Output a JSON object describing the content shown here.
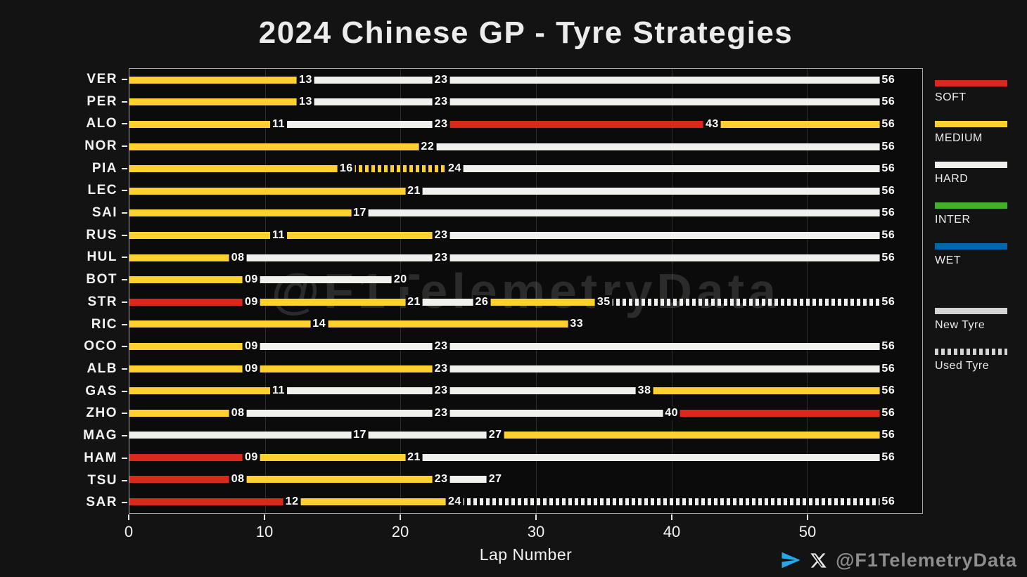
{
  "title": "2024 Chinese GP - Tyre Strategies",
  "xlabel": "Lap Number",
  "watermark": "@F1TelemetryData",
  "footer": {
    "handle": "@F1TelemetryData"
  },
  "colors": {
    "figure_bg": "#131313",
    "plot_bg": "#0b0b0b",
    "grid": "#2f2f2f",
    "telegram_blue": "#27A7E7"
  },
  "legend": {
    "compounds": [
      {
        "label": "SOFT",
        "color": "#da291c"
      },
      {
        "label": "MEDIUM",
        "color": "#ffd12e"
      },
      {
        "label": "HARD",
        "color": "#f0f0ec"
      },
      {
        "label": "INTER",
        "color": "#43b02a"
      },
      {
        "label": "WET",
        "color": "#0067ad"
      }
    ],
    "tyre_state": [
      {
        "label": "New Tyre",
        "style": "solid",
        "color": "#d4d4d4"
      },
      {
        "label": "Used Tyre",
        "style": "dashed",
        "color": "#d4d4d4"
      }
    ]
  },
  "chart_data": {
    "type": "bar",
    "orientation": "horizontal-gantt",
    "title": "2024 Chinese GP - Tyre Strategies",
    "xlabel": "Lap Number",
    "x_ticks": [
      0,
      10,
      20,
      30,
      40,
      50
    ],
    "x_max": 58.5,
    "race_laps": 56,
    "grid": "vertical",
    "legend_position": "right",
    "drivers": [
      {
        "code": "VER",
        "stints": [
          {
            "compound": "MEDIUM",
            "start": 0,
            "end": 13,
            "label": "13",
            "used": false
          },
          {
            "compound": "HARD",
            "start": 13,
            "end": 23,
            "label": "23",
            "used": false
          },
          {
            "compound": "HARD",
            "start": 23,
            "end": 56,
            "label": "56",
            "used": false
          }
        ]
      },
      {
        "code": "PER",
        "stints": [
          {
            "compound": "MEDIUM",
            "start": 0,
            "end": 13,
            "label": "13",
            "used": false
          },
          {
            "compound": "HARD",
            "start": 13,
            "end": 23,
            "label": "23",
            "used": false
          },
          {
            "compound": "HARD",
            "start": 23,
            "end": 56,
            "label": "56",
            "used": false
          }
        ]
      },
      {
        "code": "ALO",
        "stints": [
          {
            "compound": "MEDIUM",
            "start": 0,
            "end": 11,
            "label": "11",
            "used": false
          },
          {
            "compound": "HARD",
            "start": 11,
            "end": 23,
            "label": "23",
            "used": false
          },
          {
            "compound": "SOFT",
            "start": 23,
            "end": 43,
            "label": "43",
            "used": false
          },
          {
            "compound": "MEDIUM",
            "start": 43,
            "end": 56,
            "label": "56",
            "used": false
          }
        ]
      },
      {
        "code": "NOR",
        "stints": [
          {
            "compound": "MEDIUM",
            "start": 0,
            "end": 22,
            "label": "22",
            "used": false
          },
          {
            "compound": "HARD",
            "start": 22,
            "end": 56,
            "label": "56",
            "used": false
          }
        ]
      },
      {
        "code": "PIA",
        "stints": [
          {
            "compound": "MEDIUM",
            "start": 0,
            "end": 16,
            "label": "16",
            "used": false
          },
          {
            "compound": "MEDIUM",
            "start": 16,
            "end": 24,
            "label": "24",
            "used": true
          },
          {
            "compound": "HARD",
            "start": 24,
            "end": 56,
            "label": "56",
            "used": false
          }
        ]
      },
      {
        "code": "LEC",
        "stints": [
          {
            "compound": "MEDIUM",
            "start": 0,
            "end": 21,
            "label": "21",
            "used": false
          },
          {
            "compound": "HARD",
            "start": 21,
            "end": 56,
            "label": "56",
            "used": false
          }
        ]
      },
      {
        "code": "SAI",
        "stints": [
          {
            "compound": "MEDIUM",
            "start": 0,
            "end": 17,
            "label": "17",
            "used": false
          },
          {
            "compound": "HARD",
            "start": 17,
            "end": 56,
            "label": "56",
            "used": false
          }
        ]
      },
      {
        "code": "RUS",
        "stints": [
          {
            "compound": "MEDIUM",
            "start": 0,
            "end": 11,
            "label": "11",
            "used": false
          },
          {
            "compound": "MEDIUM",
            "start": 11,
            "end": 23,
            "label": "23",
            "used": false
          },
          {
            "compound": "HARD",
            "start": 23,
            "end": 56,
            "label": "56",
            "used": false
          }
        ]
      },
      {
        "code": "HUL",
        "stints": [
          {
            "compound": "MEDIUM",
            "start": 0,
            "end": 8,
            "label": "08",
            "used": false
          },
          {
            "compound": "HARD",
            "start": 8,
            "end": 23,
            "label": "23",
            "used": false
          },
          {
            "compound": "HARD",
            "start": 23,
            "end": 56,
            "label": "56",
            "used": false
          }
        ]
      },
      {
        "code": "BOT",
        "stints": [
          {
            "compound": "MEDIUM",
            "start": 0,
            "end": 9,
            "label": "09",
            "used": false
          },
          {
            "compound": "HARD",
            "start": 9,
            "end": 20,
            "label": "20",
            "used": false
          }
        ]
      },
      {
        "code": "STR",
        "stints": [
          {
            "compound": "SOFT",
            "start": 0,
            "end": 9,
            "label": "09",
            "used": false
          },
          {
            "compound": "MEDIUM",
            "start": 9,
            "end": 21,
            "label": "21",
            "used": false
          },
          {
            "compound": "HARD",
            "start": 21,
            "end": 26,
            "label": "26",
            "used": false
          },
          {
            "compound": "MEDIUM",
            "start": 26,
            "end": 35,
            "label": "35",
            "used": false
          },
          {
            "compound": "HARD",
            "start": 35,
            "end": 56,
            "label": "56",
            "used": true
          }
        ]
      },
      {
        "code": "RIC",
        "stints": [
          {
            "compound": "MEDIUM",
            "start": 0,
            "end": 14,
            "label": "14",
            "used": false
          },
          {
            "compound": "MEDIUM",
            "start": 14,
            "end": 33,
            "label": "33",
            "used": false
          }
        ]
      },
      {
        "code": "OCO",
        "stints": [
          {
            "compound": "MEDIUM",
            "start": 0,
            "end": 9,
            "label": "09",
            "used": false
          },
          {
            "compound": "HARD",
            "start": 9,
            "end": 23,
            "label": "23",
            "used": false
          },
          {
            "compound": "HARD",
            "start": 23,
            "end": 56,
            "label": "56",
            "used": false
          }
        ]
      },
      {
        "code": "ALB",
        "stints": [
          {
            "compound": "MEDIUM",
            "start": 0,
            "end": 9,
            "label": "09",
            "used": false
          },
          {
            "compound": "MEDIUM",
            "start": 9,
            "end": 23,
            "label": "23",
            "used": false
          },
          {
            "compound": "HARD",
            "start": 23,
            "end": 56,
            "label": "56",
            "used": false
          }
        ]
      },
      {
        "code": "GAS",
        "stints": [
          {
            "compound": "MEDIUM",
            "start": 0,
            "end": 11,
            "label": "11",
            "used": false
          },
          {
            "compound": "HARD",
            "start": 11,
            "end": 23,
            "label": "23",
            "used": false
          },
          {
            "compound": "HARD",
            "start": 23,
            "end": 38,
            "label": "38",
            "used": false
          },
          {
            "compound": "MEDIUM",
            "start": 38,
            "end": 56,
            "label": "56",
            "used": false
          }
        ]
      },
      {
        "code": "ZHO",
        "stints": [
          {
            "compound": "MEDIUM",
            "start": 0,
            "end": 8,
            "label": "08",
            "used": false
          },
          {
            "compound": "HARD",
            "start": 8,
            "end": 23,
            "label": "23",
            "used": false
          },
          {
            "compound": "HARD",
            "start": 23,
            "end": 40,
            "label": "40",
            "used": false
          },
          {
            "compound": "SOFT",
            "start": 40,
            "end": 56,
            "label": "56",
            "used": false
          }
        ]
      },
      {
        "code": "MAG",
        "stints": [
          {
            "compound": "HARD",
            "start": 0,
            "end": 17,
            "label": "17",
            "used": false
          },
          {
            "compound": "HARD",
            "start": 17,
            "end": 27,
            "label": "27",
            "used": false
          },
          {
            "compound": "MEDIUM",
            "start": 27,
            "end": 56,
            "label": "56",
            "used": false
          }
        ]
      },
      {
        "code": "HAM",
        "stints": [
          {
            "compound": "SOFT",
            "start": 0,
            "end": 9,
            "label": "09",
            "used": false
          },
          {
            "compound": "MEDIUM",
            "start": 9,
            "end": 21,
            "label": "21",
            "used": false
          },
          {
            "compound": "HARD",
            "start": 21,
            "end": 56,
            "label": "56",
            "used": false
          }
        ]
      },
      {
        "code": "TSU",
        "stints": [
          {
            "compound": "SOFT",
            "start": 0,
            "end": 8,
            "label": "08",
            "used": false
          },
          {
            "compound": "MEDIUM",
            "start": 8,
            "end": 23,
            "label": "23",
            "used": false
          },
          {
            "compound": "HARD",
            "start": 23,
            "end": 27,
            "label": "27",
            "used": false
          }
        ]
      },
      {
        "code": "SAR",
        "stints": [
          {
            "compound": "SOFT",
            "start": 0,
            "end": 12,
            "label": "12",
            "used": false
          },
          {
            "compound": "MEDIUM",
            "start": 12,
            "end": 24,
            "label": "24",
            "used": false
          },
          {
            "compound": "HARD",
            "start": 24,
            "end": 56,
            "label": "56",
            "used": true
          }
        ]
      }
    ]
  }
}
